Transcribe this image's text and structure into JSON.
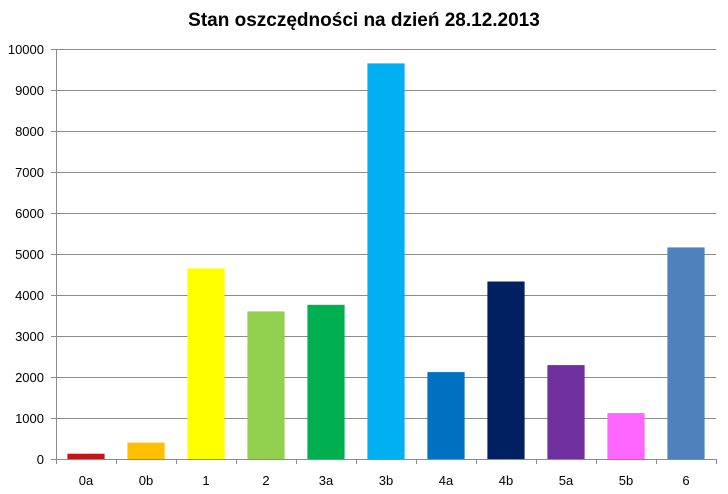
{
  "chart_data": {
    "type": "bar",
    "title": "Stan oszczędności na dzień 28.12.2013",
    "xlabel": "",
    "ylabel": "",
    "categories": [
      "0a",
      "0b",
      "1",
      "2",
      "3a",
      "3b",
      "4a",
      "4b",
      "5a",
      "5b",
      "6"
    ],
    "values": [
      130,
      400,
      4650,
      3600,
      3760,
      9650,
      2120,
      4330,
      2290,
      1120,
      5160
    ],
    "colors": [
      "#c0171b",
      "#ffc000",
      "#ffff00",
      "#92d050",
      "#00b050",
      "#00b0f0",
      "#0070c0",
      "#002060",
      "#7030a0",
      "#ff66ff",
      "#4f81bd"
    ],
    "ylim": [
      0,
      10000
    ],
    "yticks": [
      0,
      1000,
      2000,
      3000,
      4000,
      5000,
      6000,
      7000,
      8000,
      9000,
      10000
    ],
    "grid": true,
    "legend": "none"
  }
}
